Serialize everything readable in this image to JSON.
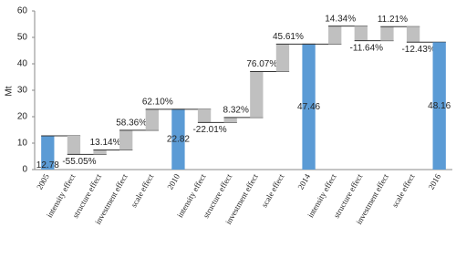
{
  "chart_data": {
    "type": "waterfall",
    "y_label": "Mt",
    "categories": [
      "2005",
      "intensity effect",
      "structure effect",
      "investment effect",
      "scale effect",
      "2010",
      "intensity effect",
      "structure effect",
      "investment effect",
      "scale effect",
      "2014",
      "intensity effect",
      "structure effect",
      "investment effect",
      "scale effect",
      "2016"
    ],
    "values": [
      12.78,
      -7.04,
      1.68,
      7.46,
      7.94,
      22.82,
      -5.02,
      1.9,
      17.36,
      10.41,
      47.46,
      6.81,
      -5.52,
      5.32,
      -5.9,
      48.16
    ],
    "bar_kinds": [
      "total",
      "effect",
      "effect",
      "effect",
      "effect",
      "total",
      "effect",
      "effect",
      "effect",
      "effect",
      "total",
      "effect",
      "effect",
      "effect",
      "effect",
      "total"
    ],
    "change_shares": [
      null,
      "-55.05%",
      "13.14%",
      "58.36%",
      "62.10%",
      null,
      "-22.01%",
      "8.32%",
      "76.07%",
      "45.61%",
      null,
      "14.34%",
      "-11.64%",
      "11.21%",
      "-12.43%",
      null
    ],
    "colors": {
      "total": "#5b9bd5",
      "effect": "#c0c0c0"
    },
    "ylim": [
      0,
      60
    ],
    "yticks": [
      0,
      10,
      20,
      30,
      40,
      50,
      60
    ]
  }
}
